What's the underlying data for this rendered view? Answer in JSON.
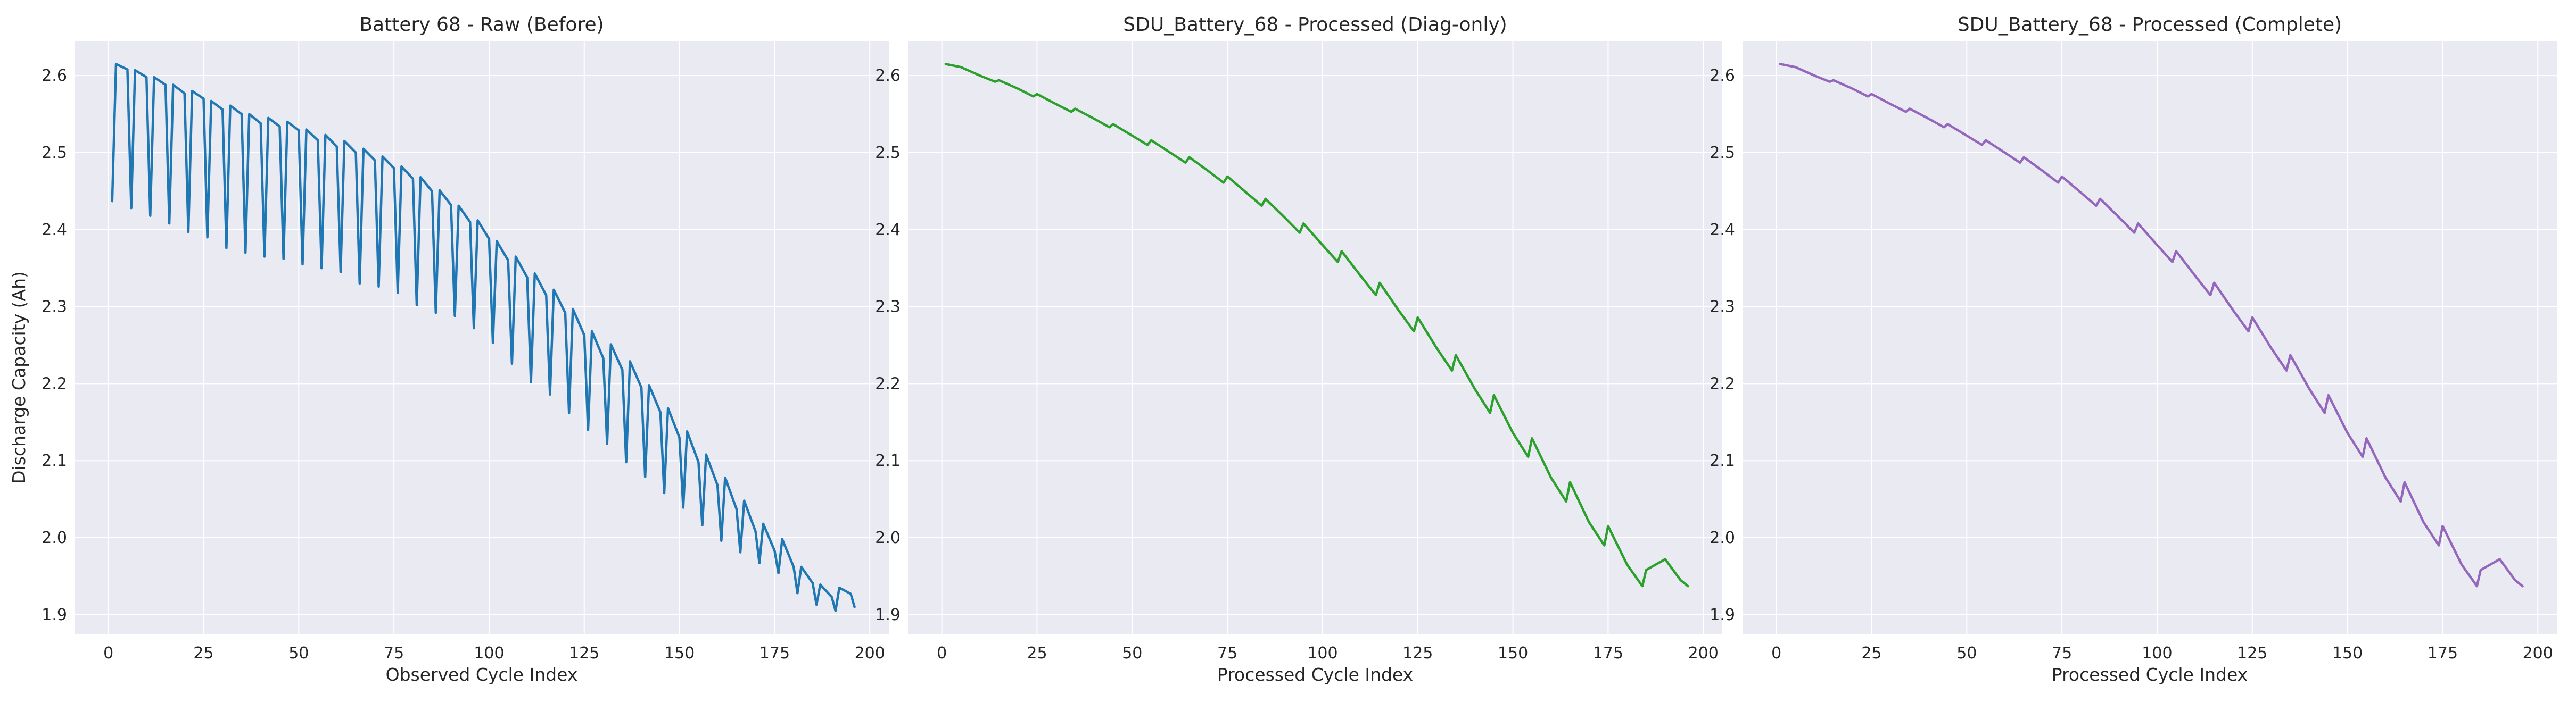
{
  "chart_data": [
    {
      "type": "line",
      "title": "Battery 68 - Raw (Before)",
      "xlabel": "Observed Cycle Index",
      "ylabel": "Discharge Capacity (Ah)",
      "xlim": [
        -8.9,
        205
      ],
      "ylim": [
        1.875,
        2.645
      ],
      "xticks": [
        0,
        25,
        50,
        75,
        100,
        125,
        150,
        175,
        200
      ],
      "yticks": [
        1.9,
        2.0,
        2.1,
        2.2,
        2.3,
        2.4,
        2.5,
        2.6
      ],
      "grid": true,
      "color": "#1f77b4",
      "series": [
        {
          "x": [
            1,
            2,
            5,
            6,
            7,
            10,
            11,
            12,
            15,
            16,
            17,
            20,
            21,
            22,
            25,
            26,
            27,
            30,
            31,
            32,
            35,
            36,
            37,
            40,
            41,
            42,
            45,
            46,
            47,
            50,
            51,
            52,
            55,
            56,
            57,
            60,
            61,
            62,
            65,
            66,
            67,
            70,
            71,
            72,
            75,
            76,
            77,
            80,
            81,
            82,
            85,
            86,
            87,
            90,
            91,
            92,
            95,
            96,
            97,
            100,
            101,
            102,
            105,
            106,
            107,
            110,
            111,
            112,
            115,
            116,
            117,
            120,
            121,
            122,
            125,
            126,
            127,
            130,
            131,
            132,
            135,
            136,
            137,
            140,
            141,
            142,
            145,
            146,
            147,
            150,
            151,
            152,
            155,
            156,
            157,
            160,
            161,
            162,
            165,
            166,
            167,
            170,
            171,
            172,
            175,
            176,
            177,
            180,
            181,
            182,
            185,
            186,
            187,
            190,
            191,
            192,
            195,
            196
          ],
          "y": [
            2.437,
            2.615,
            2.608,
            2.428,
            2.607,
            2.598,
            2.418,
            2.598,
            2.588,
            2.408,
            2.588,
            2.577,
            2.397,
            2.58,
            2.57,
            2.39,
            2.567,
            2.556,
            2.376,
            2.561,
            2.55,
            2.37,
            2.55,
            2.538,
            2.365,
            2.545,
            2.534,
            2.362,
            2.54,
            2.529,
            2.355,
            2.53,
            2.516,
            2.35,
            2.523,
            2.508,
            2.345,
            2.515,
            2.5,
            2.33,
            2.505,
            2.49,
            2.326,
            2.495,
            2.48,
            2.318,
            2.482,
            2.466,
            2.302,
            2.468,
            2.45,
            2.292,
            2.451,
            2.432,
            2.288,
            2.431,
            2.41,
            2.272,
            2.412,
            2.388,
            2.253,
            2.385,
            2.36,
            2.226,
            2.365,
            2.338,
            2.202,
            2.343,
            2.315,
            2.186,
            2.322,
            2.292,
            2.162,
            2.297,
            2.263,
            2.14,
            2.268,
            2.233,
            2.122,
            2.251,
            2.218,
            2.098,
            2.229,
            2.195,
            2.079,
            2.198,
            2.163,
            2.058,
            2.168,
            2.13,
            2.039,
            2.138,
            2.098,
            2.016,
            2.108,
            2.068,
            1.996,
            2.078,
            2.037,
            1.981,
            2.048,
            2.008,
            1.967,
            2.018,
            1.983,
            1.954,
            1.998,
            1.962,
            1.928,
            1.962,
            1.941,
            1.913,
            1.939,
            1.923,
            1.905,
            1.935,
            1.927,
            1.91
          ]
        }
      ]
    },
    {
      "type": "line",
      "title": "SDU_Battery_68 - Processed (Diag-only)",
      "xlabel": "Processed Cycle Index",
      "ylabel": "",
      "xlim": [
        -8.9,
        205
      ],
      "ylim": [
        1.875,
        2.645
      ],
      "xticks": [
        0,
        25,
        50,
        75,
        100,
        125,
        150,
        175,
        200
      ],
      "yticks": [
        1.9,
        2.0,
        2.1,
        2.2,
        2.3,
        2.4,
        2.5,
        2.6
      ],
      "grid": true,
      "color": "#2ca02c",
      "series": [
        {
          "x": [
            1,
            5,
            10,
            14,
            15,
            20,
            24,
            25,
            30,
            34,
            35,
            40,
            44,
            45,
            50,
            54,
            55,
            60,
            64,
            65,
            70,
            74,
            75,
            80,
            84,
            85,
            90,
            94,
            95,
            100,
            104,
            105,
            110,
            114,
            115,
            120,
            124,
            125,
            130,
            134,
            135,
            140,
            144,
            145,
            150,
            154,
            155,
            160,
            164,
            165,
            170,
            174,
            175,
            180,
            184,
            185,
            190,
            194,
            196
          ],
          "y": [
            2.615,
            2.611,
            2.6,
            2.592,
            2.594,
            2.583,
            2.573,
            2.576,
            2.563,
            2.553,
            2.557,
            2.544,
            2.533,
            2.537,
            2.522,
            2.51,
            2.516,
            2.5,
            2.487,
            2.494,
            2.476,
            2.461,
            2.469,
            2.448,
            2.431,
            2.44,
            2.416,
            2.396,
            2.408,
            2.38,
            2.358,
            2.372,
            2.34,
            2.315,
            2.331,
            2.295,
            2.268,
            2.286,
            2.246,
            2.217,
            2.237,
            2.193,
            2.162,
            2.185,
            2.136,
            2.105,
            2.129,
            2.078,
            2.047,
            2.072,
            2.02,
            1.99,
            2.015,
            1.965,
            1.937,
            1.958,
            1.972,
            1.945,
            1.937
          ]
        }
      ]
    },
    {
      "type": "line",
      "title": "SDU_Battery_68 - Processed (Complete)",
      "xlabel": "Processed Cycle Index",
      "ylabel": "",
      "xlim": [
        -8.9,
        205
      ],
      "ylim": [
        1.875,
        2.645
      ],
      "xticks": [
        0,
        25,
        50,
        75,
        100,
        125,
        150,
        175,
        200
      ],
      "yticks": [
        1.9,
        2.0,
        2.1,
        2.2,
        2.3,
        2.4,
        2.5,
        2.6
      ],
      "grid": true,
      "color": "#9467bd",
      "series": [
        {
          "x": [
            1,
            5,
            10,
            14,
            15,
            20,
            24,
            25,
            30,
            34,
            35,
            40,
            44,
            45,
            50,
            54,
            55,
            60,
            64,
            65,
            70,
            74,
            75,
            80,
            84,
            85,
            90,
            94,
            95,
            100,
            104,
            105,
            110,
            114,
            115,
            120,
            124,
            125,
            130,
            134,
            135,
            140,
            144,
            145,
            150,
            154,
            155,
            160,
            164,
            165,
            170,
            174,
            175,
            180,
            184,
            185,
            190,
            194,
            196
          ],
          "y": [
            2.615,
            2.611,
            2.6,
            2.592,
            2.594,
            2.583,
            2.573,
            2.576,
            2.563,
            2.553,
            2.557,
            2.544,
            2.533,
            2.537,
            2.522,
            2.51,
            2.516,
            2.5,
            2.487,
            2.494,
            2.476,
            2.461,
            2.469,
            2.448,
            2.431,
            2.44,
            2.416,
            2.396,
            2.408,
            2.38,
            2.358,
            2.372,
            2.34,
            2.315,
            2.331,
            2.295,
            2.268,
            2.286,
            2.246,
            2.217,
            2.237,
            2.193,
            2.162,
            2.185,
            2.136,
            2.105,
            2.129,
            2.078,
            2.047,
            2.072,
            2.02,
            1.99,
            2.015,
            1.965,
            1.937,
            1.958,
            1.972,
            1.945,
            1.937
          ]
        }
      ]
    }
  ]
}
